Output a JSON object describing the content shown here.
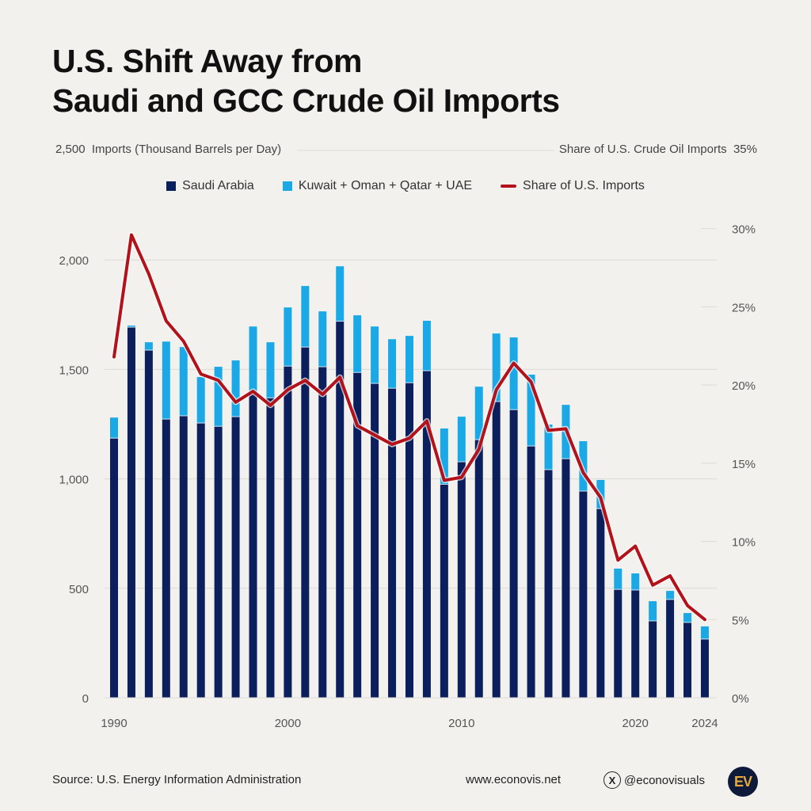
{
  "title": {
    "line1": "U.S. Shift Away from",
    "line2": "Saudi and GCC Crude Oil Imports"
  },
  "axis_heads": {
    "left_max": "2,500",
    "left_label": "Imports (Thousand Barrels per Day)",
    "right_label": "Share of U.S. Crude Oil Imports",
    "right_max": "35%"
  },
  "legend": [
    {
      "label": "Saudi Arabia",
      "color": "#0b1f5c",
      "kind": "square"
    },
    {
      "label": "Kuwait + Oman + Qatar + UAE",
      "color": "#1aa9e6",
      "kind": "square"
    },
    {
      "label": "Share of U.S. Imports",
      "color": "#b3121b",
      "kind": "line"
    }
  ],
  "footer": {
    "source": "Source: U.S. Energy Information Administration",
    "website": "www.econovis.net",
    "handle": "@econovisuals",
    "x_icon": "X",
    "logo": "EV"
  },
  "colors": {
    "background": "#f3f1ee",
    "saudi": "#0b1f5c",
    "gcc": "#1aa9e6",
    "share": "#b3121b",
    "grid": "#dddad5"
  },
  "chart_data": {
    "type": "bar+line",
    "title": "U.S. Shift Away from Saudi and GCC Crude Oil Imports",
    "xlabel": "",
    "ylabel": "Imports (Thousand Barrels per Day)",
    "y2label": "Share of U.S. Crude Oil Imports",
    "ylim": [
      0,
      2500
    ],
    "y2lim": [
      0,
      35
    ],
    "grid": true,
    "legend_position": "top-center",
    "yticks": [
      0,
      500,
      1000,
      1500,
      2000
    ],
    "ytick_labels": [
      "0",
      "500",
      "1,000",
      "1,500",
      "2,000"
    ],
    "y2ticks": [
      0,
      5,
      10,
      15,
      20,
      25,
      30
    ],
    "y2tick_labels": [
      "0%",
      "5%",
      "10%",
      "15%",
      "20%",
      "25%",
      "30%"
    ],
    "xtick_labels": [
      "1990",
      "2000",
      "2010",
      "2020",
      "2024"
    ],
    "categories": [
      1990,
      1991,
      1992,
      1993,
      1994,
      1995,
      1996,
      1997,
      1998,
      1999,
      2000,
      2001,
      2002,
      2003,
      2004,
      2005,
      2006,
      2007,
      2008,
      2009,
      2010,
      2011,
      2012,
      2013,
      2014,
      2015,
      2016,
      2017,
      2018,
      2019,
      2020,
      2021,
      2022,
      2023,
      2024
    ],
    "series": [
      {
        "name": "Saudi Arabia",
        "type": "bar-stacked",
        "axis": "left",
        "values": [
          1186,
          1693,
          1588,
          1273,
          1288,
          1255,
          1240,
          1284,
          1390,
          1370,
          1515,
          1602,
          1512,
          1720,
          1486,
          1436,
          1414,
          1439,
          1494,
          975,
          1078,
          1179,
          1353,
          1316,
          1150,
          1042,
          1092,
          944,
          864,
          495,
          492,
          351,
          449,
          344,
          268
        ]
      },
      {
        "name": "Kuwait + Oman + Qatar + UAE",
        "type": "bar-stacked",
        "axis": "left",
        "values": [
          94,
          7,
          36,
          354,
          314,
          210,
          272,
          257,
          306,
          254,
          268,
          279,
          253,
          251,
          261,
          260,
          224,
          214,
          228,
          255,
          206,
          242,
          311,
          330,
          326,
          206,
          246,
          228,
          131,
          95,
          76,
          90,
          39,
          43,
          58
        ]
      },
      {
        "name": "Share of U.S. Imports",
        "type": "line",
        "axis": "right",
        "unit": "%",
        "values": [
          21.8,
          29.6,
          27.1,
          24.1,
          22.8,
          20.7,
          20.3,
          18.9,
          19.6,
          18.7,
          19.7,
          20.3,
          19.4,
          20.5,
          17.4,
          16.8,
          16.2,
          16.6,
          17.7,
          13.9,
          14.1,
          15.9,
          19.7,
          21.4,
          20.2,
          17.1,
          17.2,
          14.4,
          12.8,
          8.8,
          9.7,
          7.2,
          7.8,
          5.9,
          5.0
        ]
      }
    ]
  }
}
